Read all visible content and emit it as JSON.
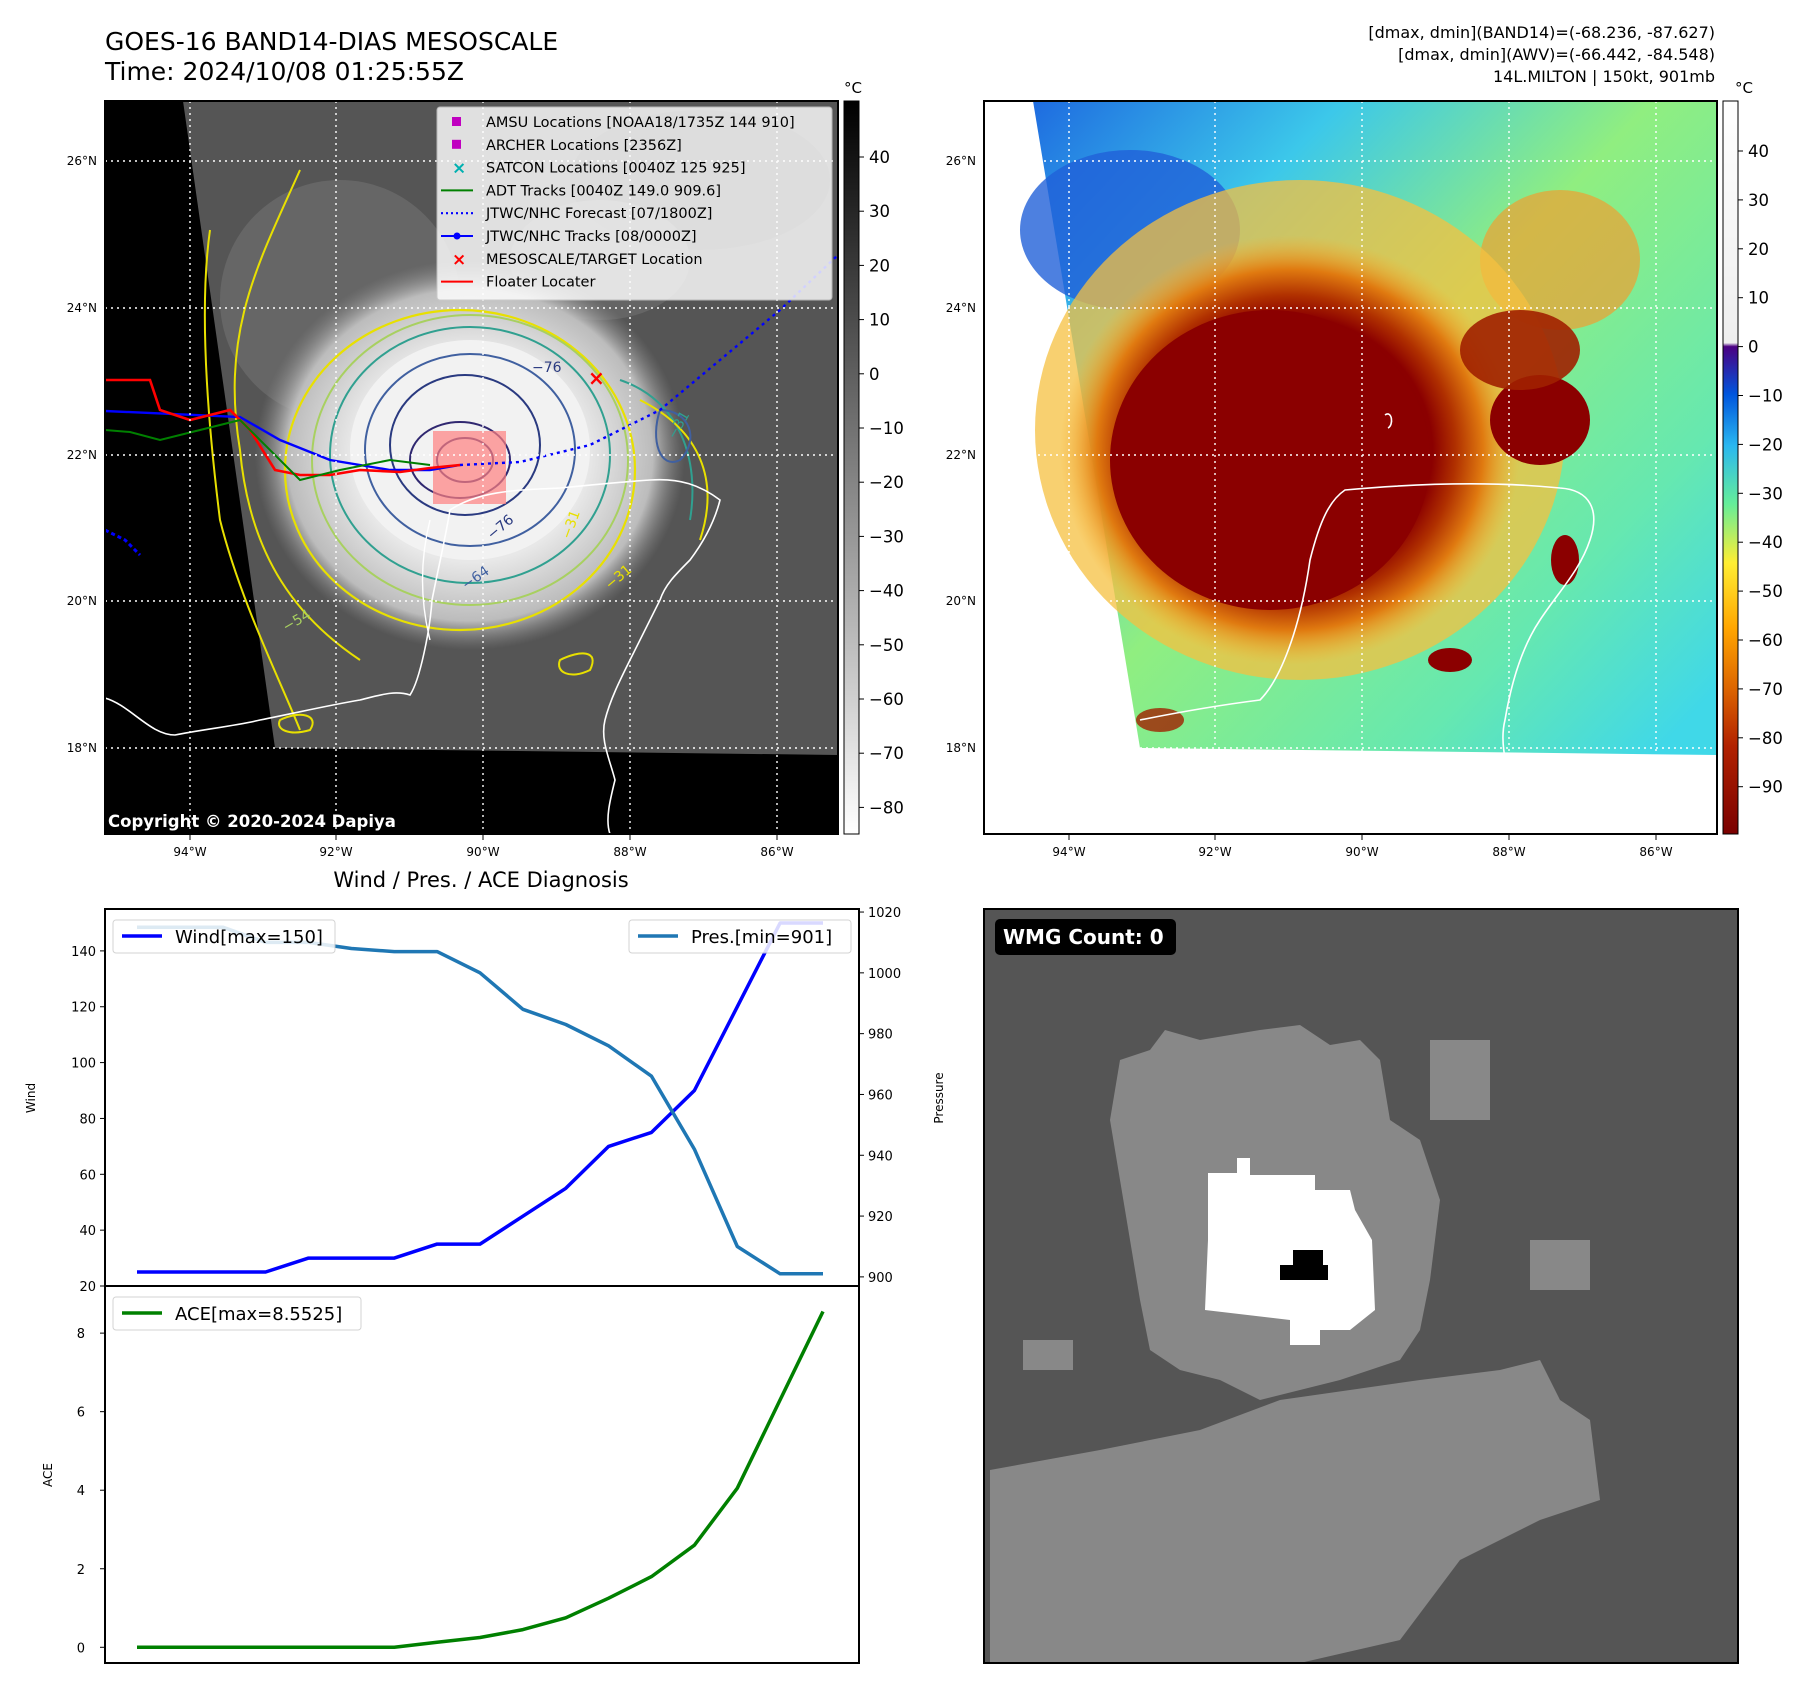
{
  "header": {
    "title_line1": "GOES-16 BAND14-DIAS MESOSCALE",
    "title_line2": "Time: 2024/10/08 01:25:55Z",
    "info_line1": "[dmax, dmin](BAND14)=(-68.236, -87.627)",
    "info_line2": "[dmax, dmin](AWV)=(-66.442, -84.548)",
    "info_line3": "14L.MILTON | 150kt, 901mb"
  },
  "map_axes": {
    "lat_labels": [
      "26°N",
      "24°N",
      "22°N",
      "20°N",
      "18°N"
    ],
    "lon_labels": [
      "94°W",
      "92°W",
      "90°W",
      "88°W",
      "86°W"
    ]
  },
  "ir_panel": {
    "colorbar_unit": "°C",
    "colorbar_ticks": [
      "40",
      "30",
      "20",
      "10",
      "0",
      "−10",
      "−20",
      "−30",
      "−40",
      "−50",
      "−60",
      "−70",
      "−80"
    ],
    "copyright": "Copyright © 2020-2024 Dapiya",
    "contour_labels": [
      "−76",
      "−76",
      "−64",
      "−54",
      "−31",
      "−31",
      "−31"
    ],
    "legend": [
      {
        "label": "AMSU Locations [NOAA18/1735Z 144 910]",
        "marker": "square",
        "color": "#c000c0"
      },
      {
        "label": "ARCHER Locations [2356Z]",
        "marker": "square",
        "color": "#c000c0"
      },
      {
        "label": "SATCON Locations [0040Z 125 925]",
        "marker": "x",
        "color": "#00b0b0"
      },
      {
        "label": "ADT Tracks [0040Z 149.0 909.6]",
        "marker": "line",
        "color": "#008000"
      },
      {
        "label": "JTWC/NHC Forecast [07/1800Z]",
        "marker": "dotted",
        "color": "#0000ff"
      },
      {
        "label": "JTWC/NHC Tracks [08/0000Z]",
        "marker": "line-dot",
        "color": "#0000ff"
      },
      {
        "label": "MESOSCALE/TARGET Location",
        "marker": "x",
        "color": "#ff0000"
      },
      {
        "label": "Floater Locater",
        "marker": "line",
        "color": "#ff0000"
      }
    ]
  },
  "awv_panel": {
    "colorbar_unit": "°C",
    "colorbar_ticks": [
      "40",
      "30",
      "20",
      "10",
      "0",
      "−10",
      "−20",
      "−30",
      "−40",
      "−50",
      "−60",
      "−70",
      "−80",
      "−90"
    ]
  },
  "wmg_panel": {
    "label": "WMG Count: 0"
  },
  "chart_data": [
    {
      "type": "line",
      "title": "Wind / Pres. / ACE Diagnosis",
      "xlabel": "",
      "ylabel": "Wind",
      "ylabel_right": "Pressure",
      "ylim": [
        20,
        155
      ],
      "ylim_right": [
        897,
        1021
      ],
      "y_ticks": [
        20,
        40,
        60,
        80,
        100,
        120,
        140
      ],
      "y_ticks_right": [
        900,
        920,
        940,
        960,
        980,
        1000,
        1020
      ],
      "x": [
        0,
        1,
        2,
        3,
        4,
        5,
        6,
        7,
        8,
        9,
        10,
        11,
        12,
        13,
        14,
        15,
        16
      ],
      "series": [
        {
          "name": "Wind[max=150]",
          "axis": "left",
          "color": "#0000ff",
          "values": [
            25,
            25,
            25,
            25,
            30,
            30,
            30,
            35,
            35,
            45,
            55,
            70,
            75,
            90,
            120,
            150,
            150
          ]
        },
        {
          "name": "Pres.[min=901]",
          "axis": "right",
          "color": "#1f77b4",
          "values": [
            1015,
            1015,
            1015,
            1010,
            1010,
            1008,
            1007,
            1007,
            1000,
            988,
            983,
            976,
            966,
            942,
            910,
            901,
            901
          ]
        }
      ]
    },
    {
      "type": "line",
      "ylabel": "ACE",
      "ylim": [
        -0.4,
        9.2
      ],
      "y_ticks": [
        0,
        2,
        4,
        6,
        8
      ],
      "x": [
        0,
        1,
        2,
        3,
        4,
        5,
        6,
        7,
        8,
        9,
        10,
        11,
        12,
        13,
        14,
        15,
        16
      ],
      "series": [
        {
          "name": "ACE[max=8.5525]",
          "color": "#008000",
          "values": [
            0,
            0,
            0,
            0,
            0,
            0,
            0,
            0.13,
            0.25,
            0.45,
            0.75,
            1.25,
            1.8,
            2.6,
            4.05,
            6.3,
            8.55
          ]
        }
      ]
    }
  ]
}
